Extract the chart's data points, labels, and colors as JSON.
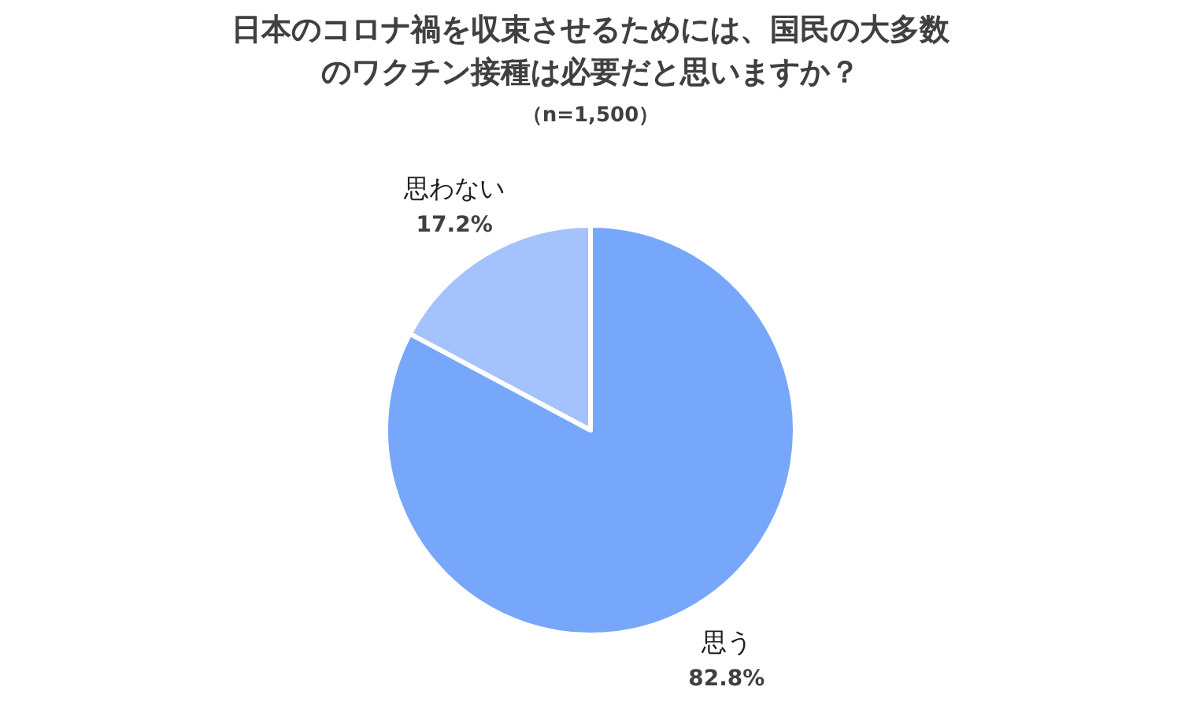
{
  "chart_data": {
    "type": "pie",
    "title": "日本のコロナ禍を収束させるためには、国民の大多数のワクチン接種は必要だと思いますか？",
    "subtitle": "（n=1,500）",
    "categories": [
      "思う",
      "思わない"
    ],
    "values": [
      82.8,
      17.2
    ],
    "colors": [
      "#76a7fb",
      "#a4c2fb"
    ],
    "value_labels": [
      "82.8%",
      "17.2%"
    ]
  }
}
